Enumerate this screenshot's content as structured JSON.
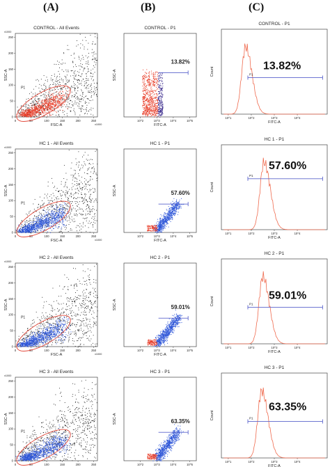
{
  "headers": [
    "(A)",
    "(B)",
    "(C)"
  ],
  "colors": {
    "gate": "#e2483a",
    "blue": "#2e56d8",
    "red": "#e8402c",
    "black": "#111111",
    "purple": "#3a2a8c",
    "marker": "#5a63cc",
    "hist": "#ef6a4e"
  },
  "chart_data": [
    {
      "type": "scatter",
      "panel": "A",
      "row": 0,
      "title": "CONTROL - All Events",
      "xlabel": "FSC-A",
      "ylabel": "SSC-A",
      "gate": "P1",
      "population_color": "red",
      "x_ticks": [
        "0",
        "50",
        "100",
        "150",
        "200",
        "250"
      ],
      "x_mult": "x1000",
      "y_ticks": [
        "0",
        "50",
        "100",
        "150",
        "200",
        "250"
      ],
      "y_mult": "x1000",
      "xlim": [
        0,
        262
      ],
      "ylim": [
        0,
        262
      ]
    },
    {
      "type": "scatter",
      "panel": "B",
      "row": 0,
      "title": "CONTROL - P1",
      "xlabel": "FITC-A",
      "ylabel": "SSC-A",
      "gate_percent": "13.82%",
      "population_color": "red-purple",
      "x_ticks": [
        "10^2",
        "10^3",
        "10^4",
        "10^5"
      ],
      "xlim": [
        1,
        5.4
      ],
      "x_log": true
    },
    {
      "type": "line",
      "panel": "C",
      "row": 0,
      "title": "CONTROL - P1",
      "xlabel": "FITC-A",
      "ylabel": "Count",
      "gate": "P1",
      "gate_percent": "13.82%",
      "peak_log": 1.75,
      "x_log": true,
      "x_ticks": [
        "10^1",
        "10^2",
        "10^3",
        "10^4"
      ],
      "marker_range_log": [
        2.0,
        4.9
      ]
    },
    {
      "type": "scatter",
      "panel": "A",
      "row": 1,
      "title": "HC 1 - All Events",
      "xlabel": "FSC-A",
      "ylabel": "SSC-A",
      "gate": "P1",
      "population_color": "blue",
      "x_ticks": [
        "0",
        "50",
        "100",
        "150",
        "200",
        "250"
      ],
      "x_mult": "x1000",
      "y_ticks": [
        "0",
        "50",
        "100",
        "150",
        "200",
        "250"
      ],
      "y_mult": "x1000",
      "xlim": [
        0,
        262
      ],
      "ylim": [
        0,
        262
      ]
    },
    {
      "type": "scatter",
      "panel": "B",
      "row": 1,
      "title": "HC 1 - P1",
      "xlabel": "FITC-A",
      "ylabel": "SSC-A",
      "gate_percent": "57.60%",
      "population_color": "blue",
      "x_ticks": [
        "10^2",
        "10^3",
        "10^4",
        "10^5"
      ],
      "xlim": [
        1,
        5.4
      ],
      "x_log": true
    },
    {
      "type": "line",
      "panel": "C",
      "row": 1,
      "title": "HC 1 - P1",
      "xlabel": "FITC-A",
      "ylabel": "Count",
      "gate": "P1",
      "gate_percent": "57.60%",
      "peak_log": 2.55,
      "x_log": true,
      "x_ticks": [
        "10^1",
        "10^2",
        "10^3",
        "10^4"
      ],
      "marker_range_log": [
        2.0,
        4.9
      ]
    },
    {
      "type": "scatter",
      "panel": "A",
      "row": 2,
      "title": "HC 2 - All Events",
      "xlabel": "FSC-A",
      "ylabel": "SSC-A",
      "gate": "P1",
      "population_color": "blue",
      "x_ticks": [
        "0",
        "50",
        "100",
        "150",
        "200",
        "250"
      ],
      "x_mult": "x1000",
      "y_ticks": [
        "0",
        "50",
        "100",
        "150",
        "200",
        "250"
      ],
      "y_mult": "x1000",
      "xlim": [
        0,
        262
      ],
      "ylim": [
        0,
        262
      ]
    },
    {
      "type": "scatter",
      "panel": "B",
      "row": 2,
      "title": "HC 2 - P1",
      "xlabel": "FITC-A",
      "ylabel": "SSC-A",
      "gate_percent": "59.01%",
      "population_color": "blue",
      "x_ticks": [
        "10^2",
        "10^3",
        "10^4",
        "10^5"
      ],
      "xlim": [
        1,
        5.4
      ],
      "x_log": true
    },
    {
      "type": "line",
      "panel": "C",
      "row": 2,
      "title": "HC 2 - P1",
      "xlabel": "FITC-A",
      "ylabel": "Count",
      "gate": "P1",
      "gate_percent": "59.01%",
      "peak_log": 2.5,
      "x_log": true,
      "x_ticks": [
        "10^1",
        "10^2",
        "10^3",
        "10^4"
      ],
      "marker_range_log": [
        2.0,
        4.9
      ]
    },
    {
      "type": "scatter",
      "panel": "A",
      "row": 3,
      "title": "HC 3 - All Events",
      "xlabel": "FSC-A",
      "ylabel": "SSC-A",
      "gate": "P1",
      "population_color": "blue",
      "x_ticks": [
        "0",
        "50",
        "100",
        "150",
        "200",
        "250"
      ],
      "x_mult": "x1000",
      "y_ticks": [
        "0",
        "50",
        "100",
        "150",
        "200",
        "250"
      ],
      "y_mult": "x1000",
      "xlim": [
        0,
        262
      ],
      "ylim": [
        0,
        262
      ]
    },
    {
      "type": "scatter",
      "panel": "B",
      "row": 3,
      "title": "HC 3 - P1",
      "xlabel": "FITC-A",
      "ylabel": "SSC-A",
      "gate_percent": "63.35%",
      "population_color": "blue",
      "x_ticks": [
        "10^2",
        "10^3",
        "10^4",
        "10^5"
      ],
      "xlim": [
        1,
        5.4
      ],
      "x_log": true
    },
    {
      "type": "line",
      "panel": "C",
      "row": 3,
      "title": "HC 3 - P1",
      "xlabel": "FITC-A",
      "ylabel": "Count",
      "gate": "P1",
      "gate_percent": "63.35%",
      "peak_log": 2.45,
      "x_log": true,
      "x_ticks": [
        "10^1",
        "10^2",
        "10^3",
        "10^4"
      ],
      "marker_range_log": [
        2.0,
        4.9
      ]
    }
  ]
}
